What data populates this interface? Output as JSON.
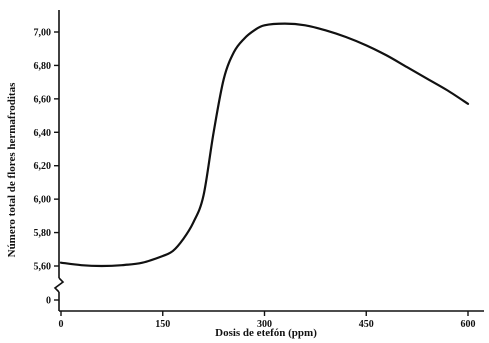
{
  "chart_data": {
    "type": "line",
    "xlabel": "Dosis de etefón (ppm)",
    "ylabel": "Número total de flores hermafroditas",
    "xlim": [
      0,
      600
    ],
    "ylim": [
      5.5,
      7.1
    ],
    "axis_break": "y-axis broken between 0 and 5,60",
    "x_ticks": [
      "0",
      "150",
      "300",
      "450",
      "600"
    ],
    "x_tick_values": [
      0,
      150,
      300,
      450,
      600
    ],
    "y_ticks": [
      "0",
      "5,60",
      "5,80",
      "6,00",
      "6,20",
      "6,40",
      "6,60",
      "6,80",
      "7,00"
    ],
    "y_tick_values": [
      0,
      5.6,
      5.8,
      6.0,
      6.2,
      6.4,
      6.6,
      6.8,
      7.0
    ],
    "grid": false,
    "series": [
      {
        "x": [
          0,
          30,
          60,
          90,
          120,
          150,
          165,
          180,
          195,
          210,
          225,
          240,
          255,
          270,
          285,
          300,
          330,
          360,
          390,
          420,
          450,
          480,
          510,
          540,
          570,
          600
        ],
        "values": [
          5.62,
          5.605,
          5.6,
          5.605,
          5.62,
          5.66,
          5.69,
          5.76,
          5.86,
          6.02,
          6.4,
          6.72,
          6.88,
          6.96,
          7.01,
          7.04,
          7.05,
          7.04,
          7.01,
          6.97,
          6.92,
          6.86,
          6.79,
          6.72,
          6.65,
          6.57
        ]
      }
    ]
  }
}
